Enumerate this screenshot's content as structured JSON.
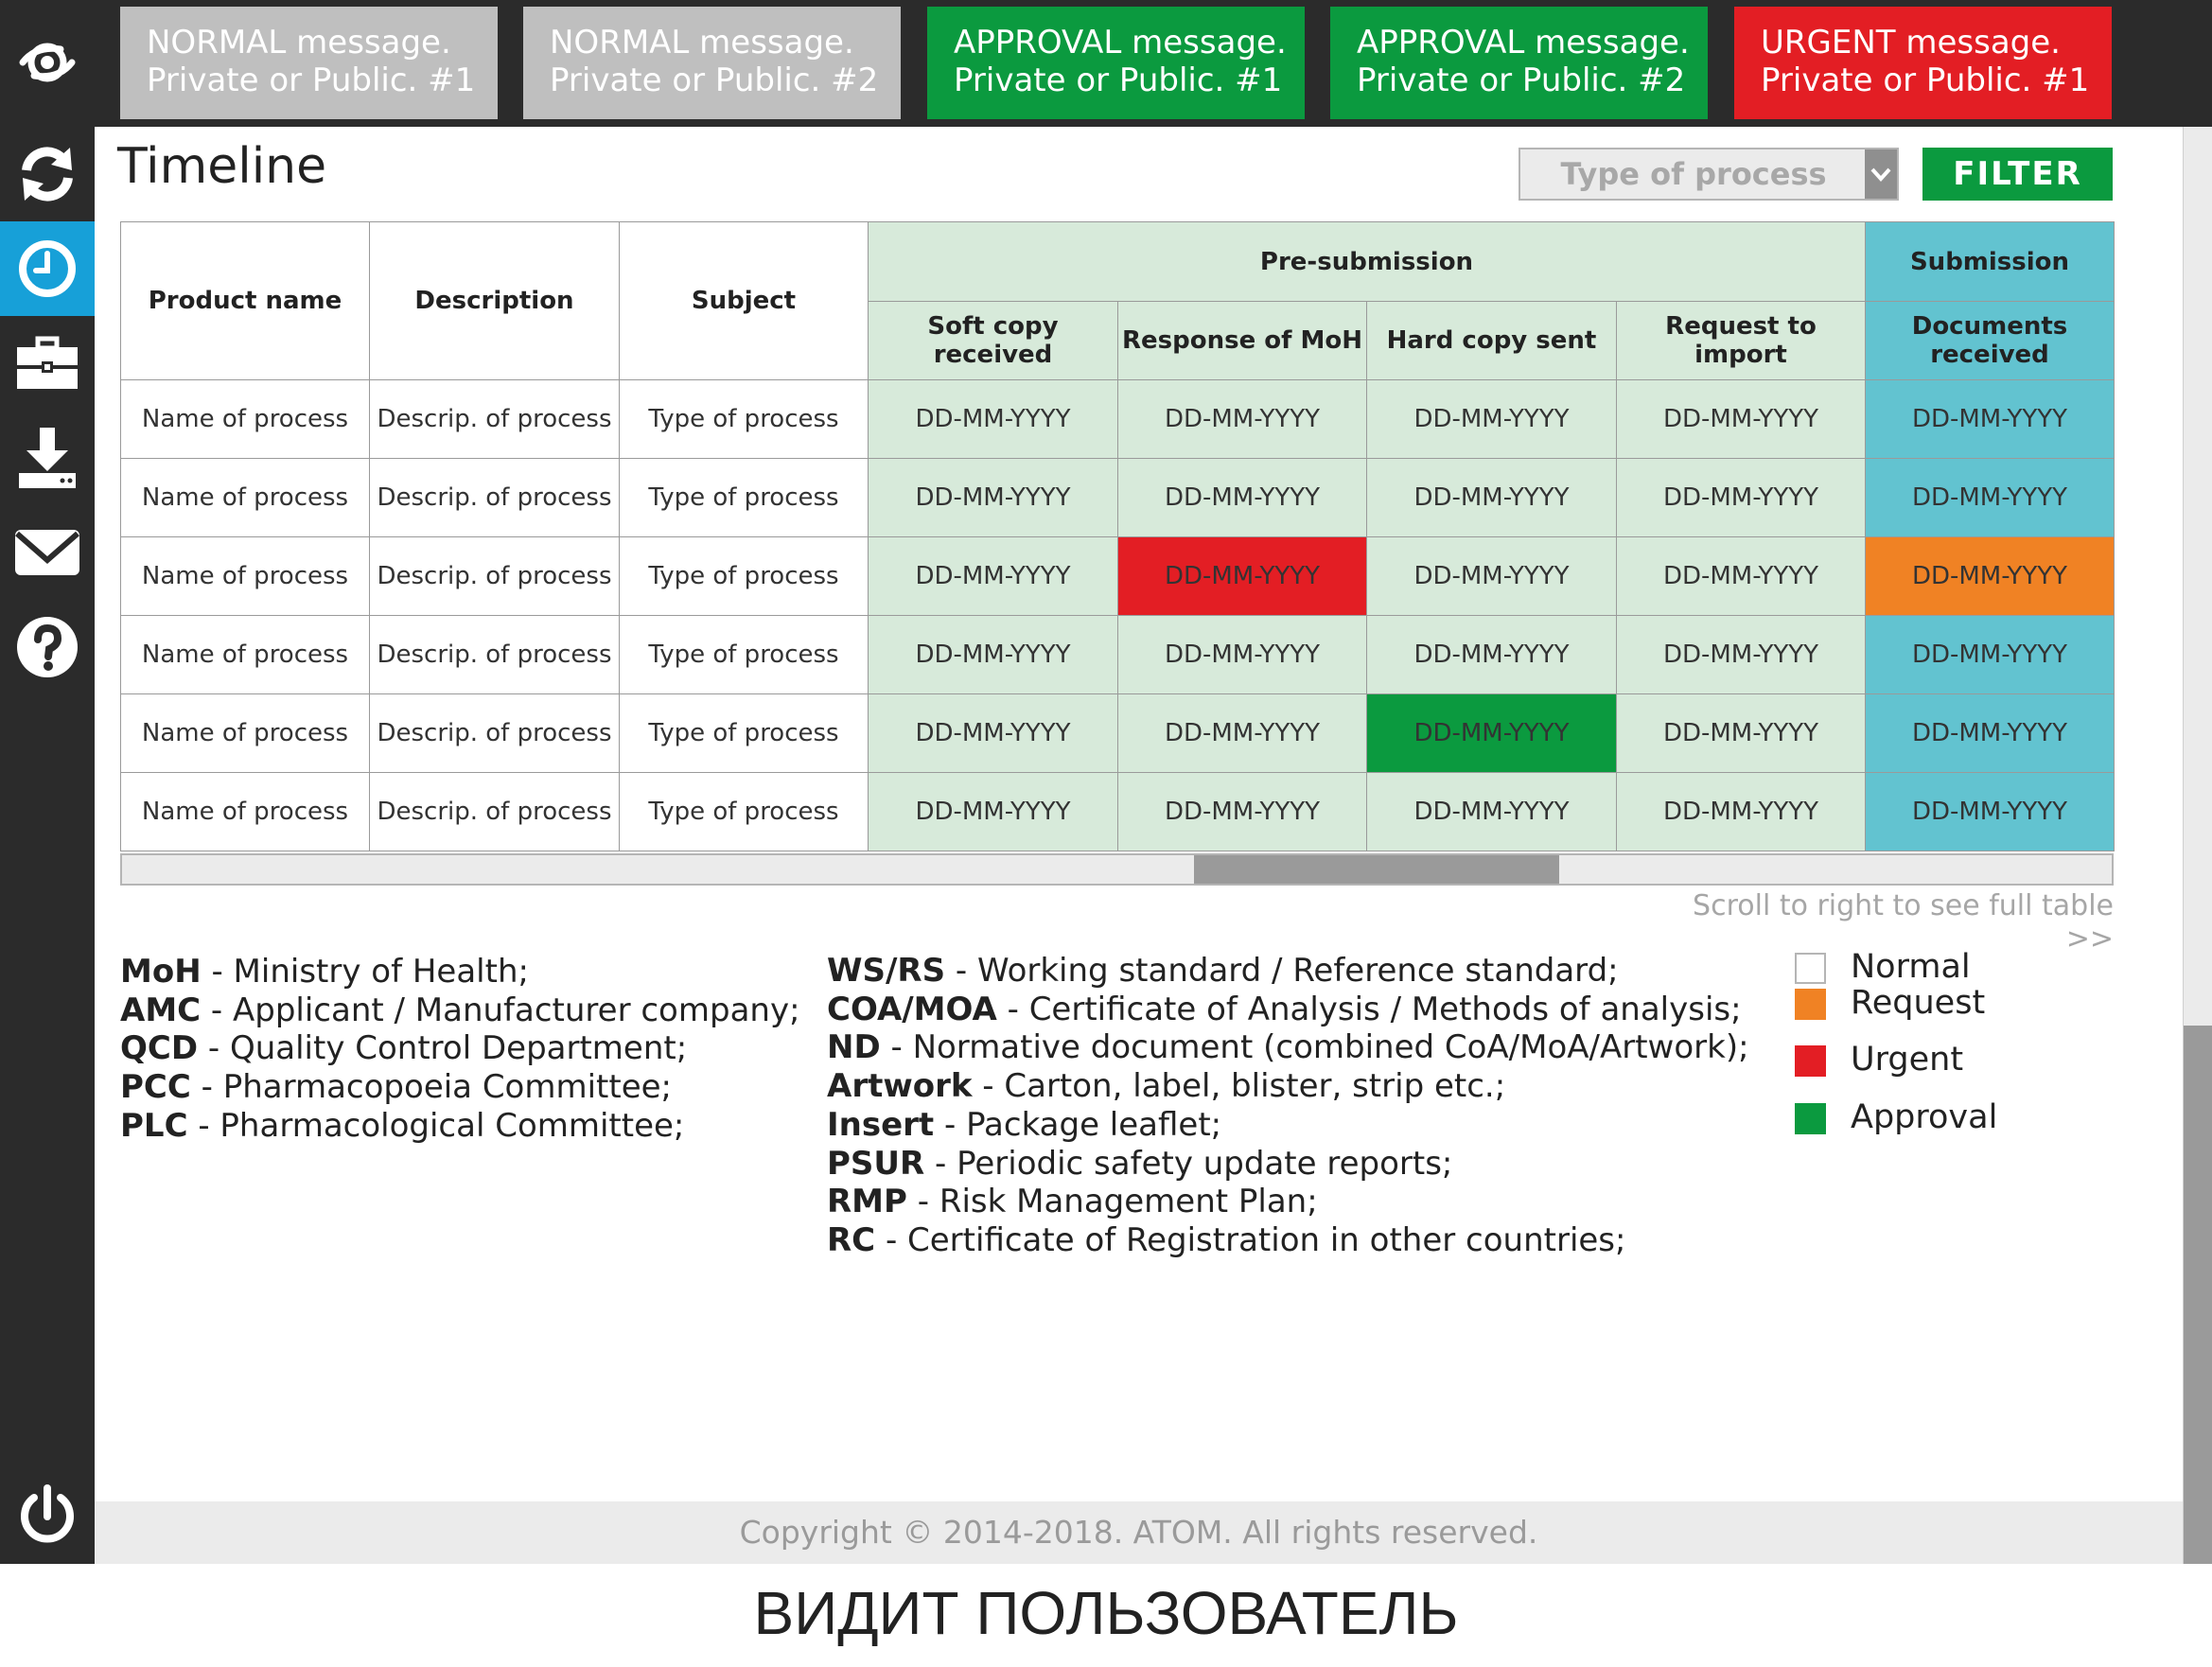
{
  "notifications": [
    {
      "line1": "NORMAL message.",
      "line2": "Private or Public. #1",
      "kind": "normal",
      "color": "#bfbfbf"
    },
    {
      "line1": "NORMAL message.",
      "line2": "Private or Public. #2",
      "kind": "normal",
      "color": "#bfbfbf"
    },
    {
      "line1": "APPROVAL message.",
      "line2": "Private or Public. #1",
      "kind": "approval",
      "color": "#0b9a3f"
    },
    {
      "line1": "APPROVAL message.",
      "line2": "Private or Public. #2",
      "kind": "approval",
      "color": "#0b9a3f"
    },
    {
      "line1": "URGENT message.",
      "line2": "Private or Public. #1",
      "kind": "urgent",
      "color": "#e31e24"
    }
  ],
  "sidebar": {
    "items": [
      {
        "icon": "eye-logo-icon",
        "active": false
      },
      {
        "icon": "refresh-icon",
        "active": false
      },
      {
        "icon": "clock-icon",
        "active": true
      },
      {
        "icon": "briefcase-icon",
        "active": false
      },
      {
        "icon": "download-icon",
        "active": false
      },
      {
        "icon": "mail-icon",
        "active": false
      },
      {
        "icon": "help-icon",
        "active": false
      },
      {
        "icon": "power-icon",
        "active": false
      }
    ],
    "active_color": "#17a0d8"
  },
  "page": {
    "title": "Timeline",
    "type_select_placeholder": "Type of process",
    "filter_label": "FILTER"
  },
  "table": {
    "headers": {
      "product": "Product name",
      "description": "Description",
      "subject": "Subject",
      "pre_submission": "Pre-submission",
      "submission": "Submission",
      "soft_copy": "Soft copy received",
      "response_moh": "Response of MoH",
      "hard_copy": "Hard copy sent",
      "request_import": "Request to import",
      "documents_received": "Documents received"
    },
    "rows": [
      {
        "product": "Name of process",
        "description": "Descrip. of process",
        "subject": "Type of process",
        "dates": [
          "DD-MM-YYYY",
          "DD-MM-YYYY",
          "DD-MM-YYYY",
          "DD-MM-YYYY",
          "DD-MM-YYYY"
        ],
        "status": [
          "normal",
          "normal",
          "normal",
          "normal",
          "normal"
        ]
      },
      {
        "product": "Name of process",
        "description": "Descrip. of process",
        "subject": "Type of process",
        "dates": [
          "DD-MM-YYYY",
          "DD-MM-YYYY",
          "DD-MM-YYYY",
          "DD-MM-YYYY",
          "DD-MM-YYYY"
        ],
        "status": [
          "normal",
          "normal",
          "normal",
          "normal",
          "normal"
        ]
      },
      {
        "product": "Name of process",
        "description": "Descrip. of process",
        "subject": "Type of process",
        "dates": [
          "DD-MM-YYYY",
          "DD-MM-YYYY",
          "DD-MM-YYYY",
          "DD-MM-YYYY",
          "DD-MM-YYYY"
        ],
        "status": [
          "normal",
          "urgent",
          "normal",
          "normal",
          "request"
        ]
      },
      {
        "product": "Name of process",
        "description": "Descrip. of process",
        "subject": "Type of process",
        "dates": [
          "DD-MM-YYYY",
          "DD-MM-YYYY",
          "DD-MM-YYYY",
          "DD-MM-YYYY",
          "DD-MM-YYYY"
        ],
        "status": [
          "normal",
          "normal",
          "normal",
          "normal",
          "normal"
        ]
      },
      {
        "product": "Name of process",
        "description": "Descrip. of process",
        "subject": "Type of process",
        "dates": [
          "DD-MM-YYYY",
          "DD-MM-YYYY",
          "DD-MM-YYYY",
          "DD-MM-YYYY",
          "DD-MM-YYYY"
        ],
        "status": [
          "normal",
          "normal",
          "approval",
          "normal",
          "normal"
        ]
      },
      {
        "product": "Name of process",
        "description": "Descrip. of process",
        "subject": "Type of process",
        "dates": [
          "DD-MM-YYYY",
          "DD-MM-YYYY",
          "DD-MM-YYYY",
          "DD-MM-YYYY",
          "DD-MM-YYYY"
        ],
        "status": [
          "normal",
          "normal",
          "normal",
          "normal",
          "normal"
        ]
      }
    ],
    "colors": {
      "pre_submission": "#d7eada",
      "submission": "#62c3d0",
      "urgent": "#e31e24",
      "approval": "#0b9a3f",
      "request": "#f08224"
    },
    "horizontal_scroll_position": 0.54,
    "scroll_hint": "Scroll to right to see full table >>"
  },
  "glossary": {
    "left": [
      {
        "abbr": "MoH",
        "desc": " - Ministry of Health;"
      },
      {
        "abbr": "AMC",
        "desc": " - Applicant / Manufacturer company;"
      },
      {
        "abbr": "QCD",
        "desc": " - Quality Control Department;"
      },
      {
        "abbr": "PCC",
        "desc": " - Pharmacopoeia Committee;"
      },
      {
        "abbr": "PLC",
        "desc": " - Pharmacological Committee;"
      }
    ],
    "right": [
      {
        "abbr": "WS/RS",
        "desc": " - Working standard / Reference standard;"
      },
      {
        "abbr": "COA/MOA",
        "desc": " - Certificate of Analysis / Methods of analysis;"
      },
      {
        "abbr": "ND",
        "desc": " - Normative document (combined CoA/MoA/Artwork);"
      },
      {
        "abbr": "Artwork",
        "desc": " - Carton, label, blister, strip etc.;"
      },
      {
        "abbr": "Insert",
        "desc": " - Package leaflet;"
      },
      {
        "abbr": "PSUR",
        "desc": " - Periodic safety update reports;"
      },
      {
        "abbr": "RMP",
        "desc": " - Risk Management Plan;"
      },
      {
        "abbr": "RC",
        "desc": " - Certificate of Registration in other countries;"
      }
    ]
  },
  "legend": [
    {
      "label": "Normal",
      "color": "#ffffff"
    },
    {
      "label": "Request",
      "color": "#f08224"
    },
    {
      "label": "Urgent",
      "color": "#e31e24"
    },
    {
      "label": "Approval",
      "color": "#0b9a3f"
    }
  ],
  "footer": {
    "copyright": "Copyright © 2014-2018. ATOM. All rights reserved."
  },
  "caption": "ВИДИТ ПОЛЬЗОВАТЕЛЬ"
}
